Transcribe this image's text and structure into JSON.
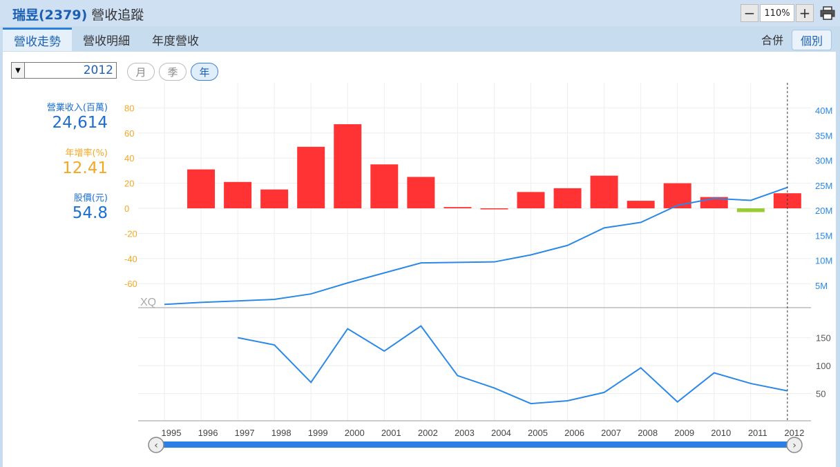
{
  "app": {
    "company": "瑞昱(2379)",
    "page_title": "營收追蹤",
    "zoom": "110%",
    "tabs": [
      {
        "label": "營收走勢",
        "active": true
      },
      {
        "label": "營收明細",
        "active": false
      },
      {
        "label": "年度營收",
        "active": false
      }
    ],
    "view_toggle": [
      {
        "label": "合併",
        "active": false
      },
      {
        "label": "個別",
        "active": true
      }
    ],
    "year_select": "2012",
    "period_buttons": [
      {
        "label": "月",
        "active": false
      },
      {
        "label": "季",
        "active": false
      },
      {
        "label": "年",
        "active": true
      }
    ]
  },
  "stats": [
    {
      "label": "營業收入(百萬)",
      "value": "24,614",
      "color": "#1a6fd0"
    },
    {
      "label": "年增率(%)",
      "value": "12.41",
      "color": "#f5a623"
    },
    {
      "label": "股價(元)",
      "value": "54.8",
      "color": "#1a6fd0"
    }
  ],
  "watermark": "XQ",
  "colors": {
    "bar_positive": "#ff3333",
    "bar_negative": "#99cc33",
    "line": "#2a88e6",
    "left_axis": "#f5a623",
    "right_axis": "#2a88e6",
    "scroll": "#2c7fe6"
  },
  "chart_data": [
    {
      "type": "bar+line",
      "x": [
        "1995",
        "1996",
        "1997",
        "1998",
        "1999",
        "2000",
        "2001",
        "2002",
        "2003",
        "2004",
        "2005",
        "2006",
        "2007",
        "2008",
        "2009",
        "2010",
        "2011",
        "2012"
      ],
      "series": [
        {
          "axis": "left",
          "type": "bar",
          "values": [
            null,
            31,
            21,
            15,
            49,
            67,
            35,
            25,
            1,
            0,
            13,
            16,
            26,
            6,
            20,
            9,
            -3,
            12
          ]
        },
        {
          "axis": "right",
          "type": "line",
          "values": [
            1.2,
            1.6,
            1.9,
            2.2,
            3.3,
            5.5,
            7.5,
            9.5,
            9.6,
            9.7,
            11.1,
            13.0,
            16.5,
            17.6,
            21.0,
            22.4,
            22.0,
            24.6
          ]
        }
      ],
      "left_ticks": [
        80,
        60,
        40,
        20,
        0,
        -20,
        -40,
        -60
      ],
      "right_ticks": [
        "40M",
        "35M",
        "30M",
        "25M",
        "20M",
        "15M",
        "10M",
        "5M"
      ],
      "left_range": [
        -80,
        80
      ],
      "right_range": [
        0,
        40
      ]
    },
    {
      "type": "line",
      "x": [
        "1995",
        "1996",
        "1997",
        "1998",
        "1999",
        "2000",
        "2001",
        "2002",
        "2003",
        "2004",
        "2005",
        "2006",
        "2007",
        "2008",
        "2009",
        "2010",
        "2011",
        "2012"
      ],
      "series": [
        {
          "values": [
            null,
            null,
            150,
            137,
            70,
            166,
            126,
            171,
            82,
            60,
            32,
            37,
            52,
            96,
            35,
            87,
            68,
            54.8
          ]
        }
      ],
      "right_ticks": [
        150,
        100,
        50
      ],
      "range": [
        0,
        200
      ]
    }
  ]
}
